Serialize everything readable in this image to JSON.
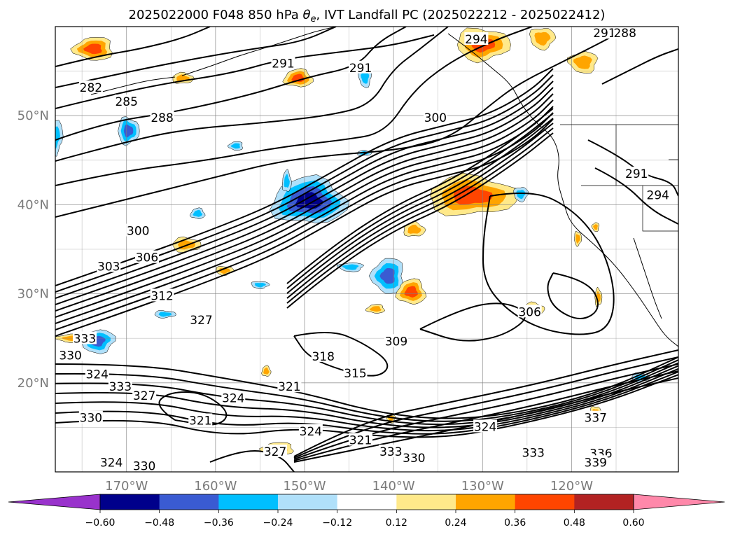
{
  "chart_data": {
    "type": "map",
    "title": "2025022000 F048 850 hPa θe, IVT Landfall PC (2025022212 - 2025022412)",
    "title_parts": {
      "prefix": "2025022000 F048 850 hPa ",
      "theta": "θ",
      "sub": "e",
      "suffix": ", IVT Landfall PC (2025022212 - 2025022412)"
    },
    "x_ticks": [
      {
        "lon": -170,
        "label": "170°W"
      },
      {
        "lon": -160,
        "label": "160°W"
      },
      {
        "lon": -150,
        "label": "150°W"
      },
      {
        "lon": -140,
        "label": "140°W"
      },
      {
        "lon": -130,
        "label": "130°W"
      },
      {
        "lon": -120,
        "label": "120°W"
      }
    ],
    "y_ticks": [
      {
        "lat": 50,
        "label": "50°N"
      },
      {
        "lat": 40,
        "label": "40°N"
      },
      {
        "lat": 30,
        "label": "30°N"
      },
      {
        "lat": 20,
        "label": "20°N"
      }
    ],
    "lon_range": [
      -178,
      -108
    ],
    "lat_range": [
      10,
      60
    ],
    "grid": true,
    "contour_labels": [
      {
        "text": "282",
        "lon": -174.0,
        "lat": 53.1
      },
      {
        "text": "285",
        "lon": -170.0,
        "lat": 51.5
      },
      {
        "text": "288",
        "lon": -166.0,
        "lat": 49.7
      },
      {
        "text": "291",
        "lon": -152.4,
        "lat": 55.8
      },
      {
        "text": "291",
        "lon": -143.7,
        "lat": 55.3
      },
      {
        "text": "294",
        "lon": -130.7,
        "lat": 58.5
      },
      {
        "text": "300",
        "lon": -135.3,
        "lat": 49.7
      },
      {
        "text": "291",
        "lon": -116.3,
        "lat": 59.2
      },
      {
        "text": "288",
        "lon": -114.0,
        "lat": 59.2
      },
      {
        "text": "291",
        "lon": -112.7,
        "lat": 43.4
      },
      {
        "text": "294",
        "lon": -110.3,
        "lat": 41.0
      },
      {
        "text": "300",
        "lon": -168.7,
        "lat": 37.0
      },
      {
        "text": "303",
        "lon": -172.0,
        "lat": 33.0
      },
      {
        "text": "306",
        "lon": -167.7,
        "lat": 34.0
      },
      {
        "text": "312",
        "lon": -166.0,
        "lat": 29.7
      },
      {
        "text": "327",
        "lon": -161.6,
        "lat": 27.0
      },
      {
        "text": "333",
        "lon": -174.7,
        "lat": 24.9
      },
      {
        "text": "309",
        "lon": -139.7,
        "lat": 24.6
      },
      {
        "text": "306",
        "lon": -124.7,
        "lat": 27.9
      },
      {
        "text": "318",
        "lon": -147.9,
        "lat": 22.9
      },
      {
        "text": "315",
        "lon": -144.3,
        "lat": 21.0
      },
      {
        "text": "321",
        "lon": -151.7,
        "lat": 19.5
      },
      {
        "text": "324",
        "lon": -158.0,
        "lat": 18.2
      },
      {
        "text": "321",
        "lon": -161.7,
        "lat": 15.7
      },
      {
        "text": "324",
        "lon": -173.3,
        "lat": 20.9
      },
      {
        "text": "330",
        "lon": -176.3,
        "lat": 23.0
      },
      {
        "text": "333",
        "lon": -170.7,
        "lat": 19.5
      },
      {
        "text": "327",
        "lon": -168.0,
        "lat": 18.5
      },
      {
        "text": "330",
        "lon": -174.0,
        "lat": 16.0
      },
      {
        "text": "324",
        "lon": -149.3,
        "lat": 14.5
      },
      {
        "text": "321",
        "lon": -143.7,
        "lat": 13.5
      },
      {
        "text": "327",
        "lon": -153.3,
        "lat": 12.2
      },
      {
        "text": "324",
        "lon": -171.7,
        "lat": 11.0
      },
      {
        "text": "330",
        "lon": -168.0,
        "lat": 10.6
      },
      {
        "text": "333",
        "lon": -140.3,
        "lat": 12.2
      },
      {
        "text": "330",
        "lon": -137.7,
        "lat": 11.5
      },
      {
        "text": "324",
        "lon": -129.7,
        "lat": 15.0
      },
      {
        "text": "333",
        "lon": -124.3,
        "lat": 12.1
      },
      {
        "text": "337",
        "lon": -117.3,
        "lat": 16.0
      },
      {
        "text": "336",
        "lon": -116.7,
        "lat": 12.0
      },
      {
        "text": "339",
        "lon": -117.3,
        "lat": 11.0
      }
    ],
    "colorbar": {
      "extend": "both",
      "boundaries": [
        -0.72,
        -0.6,
        -0.48,
        -0.36,
        -0.24,
        -0.12,
        0.12,
        0.24,
        0.36,
        0.48,
        0.6,
        0.72
      ],
      "colors": [
        "#9932cc",
        "#00008b",
        "#3a5bd2",
        "#00bfff",
        "#b0e0fa",
        "#ffffff",
        "#ffe98a",
        "#ffa500",
        "#ff4500",
        "#b22222",
        "#ff88aa"
      ],
      "tick_values": [
        -0.6,
        -0.48,
        -0.36,
        -0.24,
        -0.12,
        0.12,
        0.24,
        0.36,
        0.48,
        0.6
      ],
      "tick_labels": [
        "−0.60",
        "−0.48",
        "−0.36",
        "−0.24",
        "−0.12",
        "0.12",
        "0.24",
        "0.36",
        "0.48",
        "0.60"
      ]
    },
    "filled_anomalies": [
      {
        "lon": -149.5,
        "lat": 40.4,
        "rx": 4.2,
        "ry": 2.6,
        "value": -0.5
      },
      {
        "lon": -131.2,
        "lat": 41.0,
        "rx": 5.0,
        "ry": 2.2,
        "value": 0.45
      },
      {
        "lon": -130.0,
        "lat": 58.0,
        "rx": 3.0,
        "ry": 1.8,
        "value": 0.4
      },
      {
        "lon": -123.3,
        "lat": 58.7,
        "rx": 1.4,
        "ry": 1.2,
        "value": 0.3
      },
      {
        "lon": -118.7,
        "lat": 56.0,
        "rx": 1.6,
        "ry": 1.2,
        "value": 0.3
      },
      {
        "lon": -173.7,
        "lat": 57.5,
        "rx": 2.2,
        "ry": 1.3,
        "value": 0.4
      },
      {
        "lon": -150.7,
        "lat": 54.2,
        "rx": 1.6,
        "ry": 1.0,
        "value": 0.4
      },
      {
        "lon": -163.7,
        "lat": 54.2,
        "rx": 1.2,
        "ry": 0.6,
        "value": 0.3
      },
      {
        "lon": -169.8,
        "lat": 48.3,
        "rx": 1.2,
        "ry": 1.5,
        "value": -0.4
      },
      {
        "lon": -178.0,
        "lat": 47.7,
        "rx": 0.8,
        "ry": 2.0,
        "value": -0.3
      },
      {
        "lon": -143.2,
        "lat": 54.3,
        "rx": 0.7,
        "ry": 1.1,
        "value": -0.3
      },
      {
        "lon": -140.6,
        "lat": 32.0,
        "rx": 1.8,
        "ry": 2.0,
        "value": -0.4
      },
      {
        "lon": -138.0,
        "lat": 30.2,
        "rx": 1.6,
        "ry": 1.4,
        "value": 0.4
      },
      {
        "lon": -137.7,
        "lat": 37.2,
        "rx": 1.2,
        "ry": 0.8,
        "value": 0.3
      },
      {
        "lon": -163.3,
        "lat": 35.5,
        "rx": 1.6,
        "ry": 0.8,
        "value": 0.3
      },
      {
        "lon": -159.0,
        "lat": 32.6,
        "rx": 1.0,
        "ry": 0.5,
        "value": 0.3
      },
      {
        "lon": -173.3,
        "lat": 24.7,
        "rx": 2.0,
        "ry": 1.3,
        "value": -0.4
      },
      {
        "lon": -176.0,
        "lat": 25.0,
        "rx": 1.8,
        "ry": 0.5,
        "value": 0.3
      },
      {
        "lon": -142.0,
        "lat": 28.3,
        "rx": 1.0,
        "ry": 0.5,
        "value": 0.3
      },
      {
        "lon": -152.0,
        "lat": 42.6,
        "rx": 0.5,
        "ry": 1.2,
        "value": -0.3
      },
      {
        "lon": -117.0,
        "lat": 29.6,
        "rx": 0.4,
        "ry": 1.0,
        "value": 0.3
      },
      {
        "lon": -119.3,
        "lat": 36.2,
        "rx": 0.4,
        "ry": 0.8,
        "value": 0.3
      },
      {
        "lon": -125.7,
        "lat": 41.2,
        "rx": 0.8,
        "ry": 0.8,
        "value": -0.3
      },
      {
        "lon": -117.3,
        "lat": 37.5,
        "rx": 0.4,
        "ry": 0.5,
        "value": 0.3
      },
      {
        "lon": -153.0,
        "lat": 12.6,
        "rx": 1.8,
        "ry": 0.7,
        "value": 0.3
      },
      {
        "lon": -154.3,
        "lat": 21.3,
        "rx": 0.5,
        "ry": 0.6,
        "value": 0.3
      },
      {
        "lon": -124.3,
        "lat": 28.3,
        "rx": 1.2,
        "ry": 0.7,
        "value": 0.12
      },
      {
        "lon": -165.7,
        "lat": 27.7,
        "rx": 1.2,
        "ry": 0.4,
        "value": -0.3
      },
      {
        "lon": -155.0,
        "lat": 31.0,
        "rx": 1.0,
        "ry": 0.4,
        "value": -0.3
      },
      {
        "lon": -144.8,
        "lat": 33.0,
        "rx": 1.4,
        "ry": 0.5,
        "value": -0.3
      },
      {
        "lon": -157.7,
        "lat": 46.6,
        "rx": 0.8,
        "ry": 0.5,
        "value": -0.3
      },
      {
        "lon": -162.0,
        "lat": 39.0,
        "rx": 0.8,
        "ry": 0.6,
        "value": -0.3
      },
      {
        "lon": -143.3,
        "lat": 45.8,
        "rx": 0.8,
        "ry": 0.3,
        "value": -0.3
      },
      {
        "lon": -112.3,
        "lat": 20.6,
        "rx": 1.0,
        "ry": 0.5,
        "value": -0.3
      },
      {
        "lon": -117.3,
        "lat": 16.6,
        "rx": 0.6,
        "ry": 0.8,
        "value": 0.3
      },
      {
        "lon": -140.3,
        "lat": 16.0,
        "rx": 0.5,
        "ry": 0.5,
        "value": 0.3
      }
    ]
  }
}
